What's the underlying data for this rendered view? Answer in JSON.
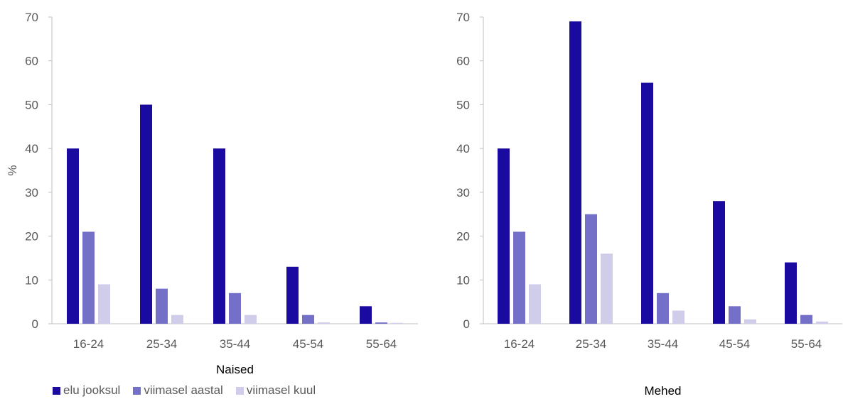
{
  "colors": {
    "elu_jooksul": "#1a0aa0",
    "viimasel_aastal": "#7470c8",
    "viimasel_kuul": "#d0cdeb",
    "axis": "#bfbfbf"
  },
  "chart_data": [
    {
      "type": "bar",
      "categories": [
        "16-24",
        "25-34",
        "35-44",
        "45-54",
        "55-64"
      ],
      "series": [
        {
          "name": "elu jooksul",
          "values": [
            40,
            50,
            40,
            13,
            4
          ]
        },
        {
          "name": "viimasel aastal",
          "values": [
            21,
            8,
            7,
            2,
            0.3
          ]
        },
        {
          "name": "viimasel kuul",
          "values": [
            9,
            2,
            2,
            0.3,
            0.2
          ]
        }
      ],
      "xlabel": "Naised",
      "ylabel": "%",
      "ylim": [
        0,
        70
      ],
      "yticks": [
        0,
        10,
        20,
        30,
        40,
        50,
        60,
        70
      ],
      "grid": false,
      "legend": "bottom-left"
    },
    {
      "type": "bar",
      "categories": [
        "16-24",
        "25-34",
        "35-44",
        "45-54",
        "55-64"
      ],
      "series": [
        {
          "name": "elu jooksul",
          "values": [
            40,
            69,
            55,
            28,
            14
          ]
        },
        {
          "name": "viimasel aastal",
          "values": [
            21,
            25,
            7,
            4,
            2
          ]
        },
        {
          "name": "viimasel kuul",
          "values": [
            9,
            16,
            3,
            1,
            0.5
          ]
        }
      ],
      "xlabel": "Mehed",
      "ylabel": "",
      "ylim": [
        0,
        70
      ],
      "yticks": [
        0,
        10,
        20,
        30,
        40,
        50,
        60,
        70
      ],
      "grid": false
    }
  ],
  "legend": {
    "items": [
      "elu jooksul",
      "viimasel aastal",
      "viimasel kuul"
    ]
  }
}
